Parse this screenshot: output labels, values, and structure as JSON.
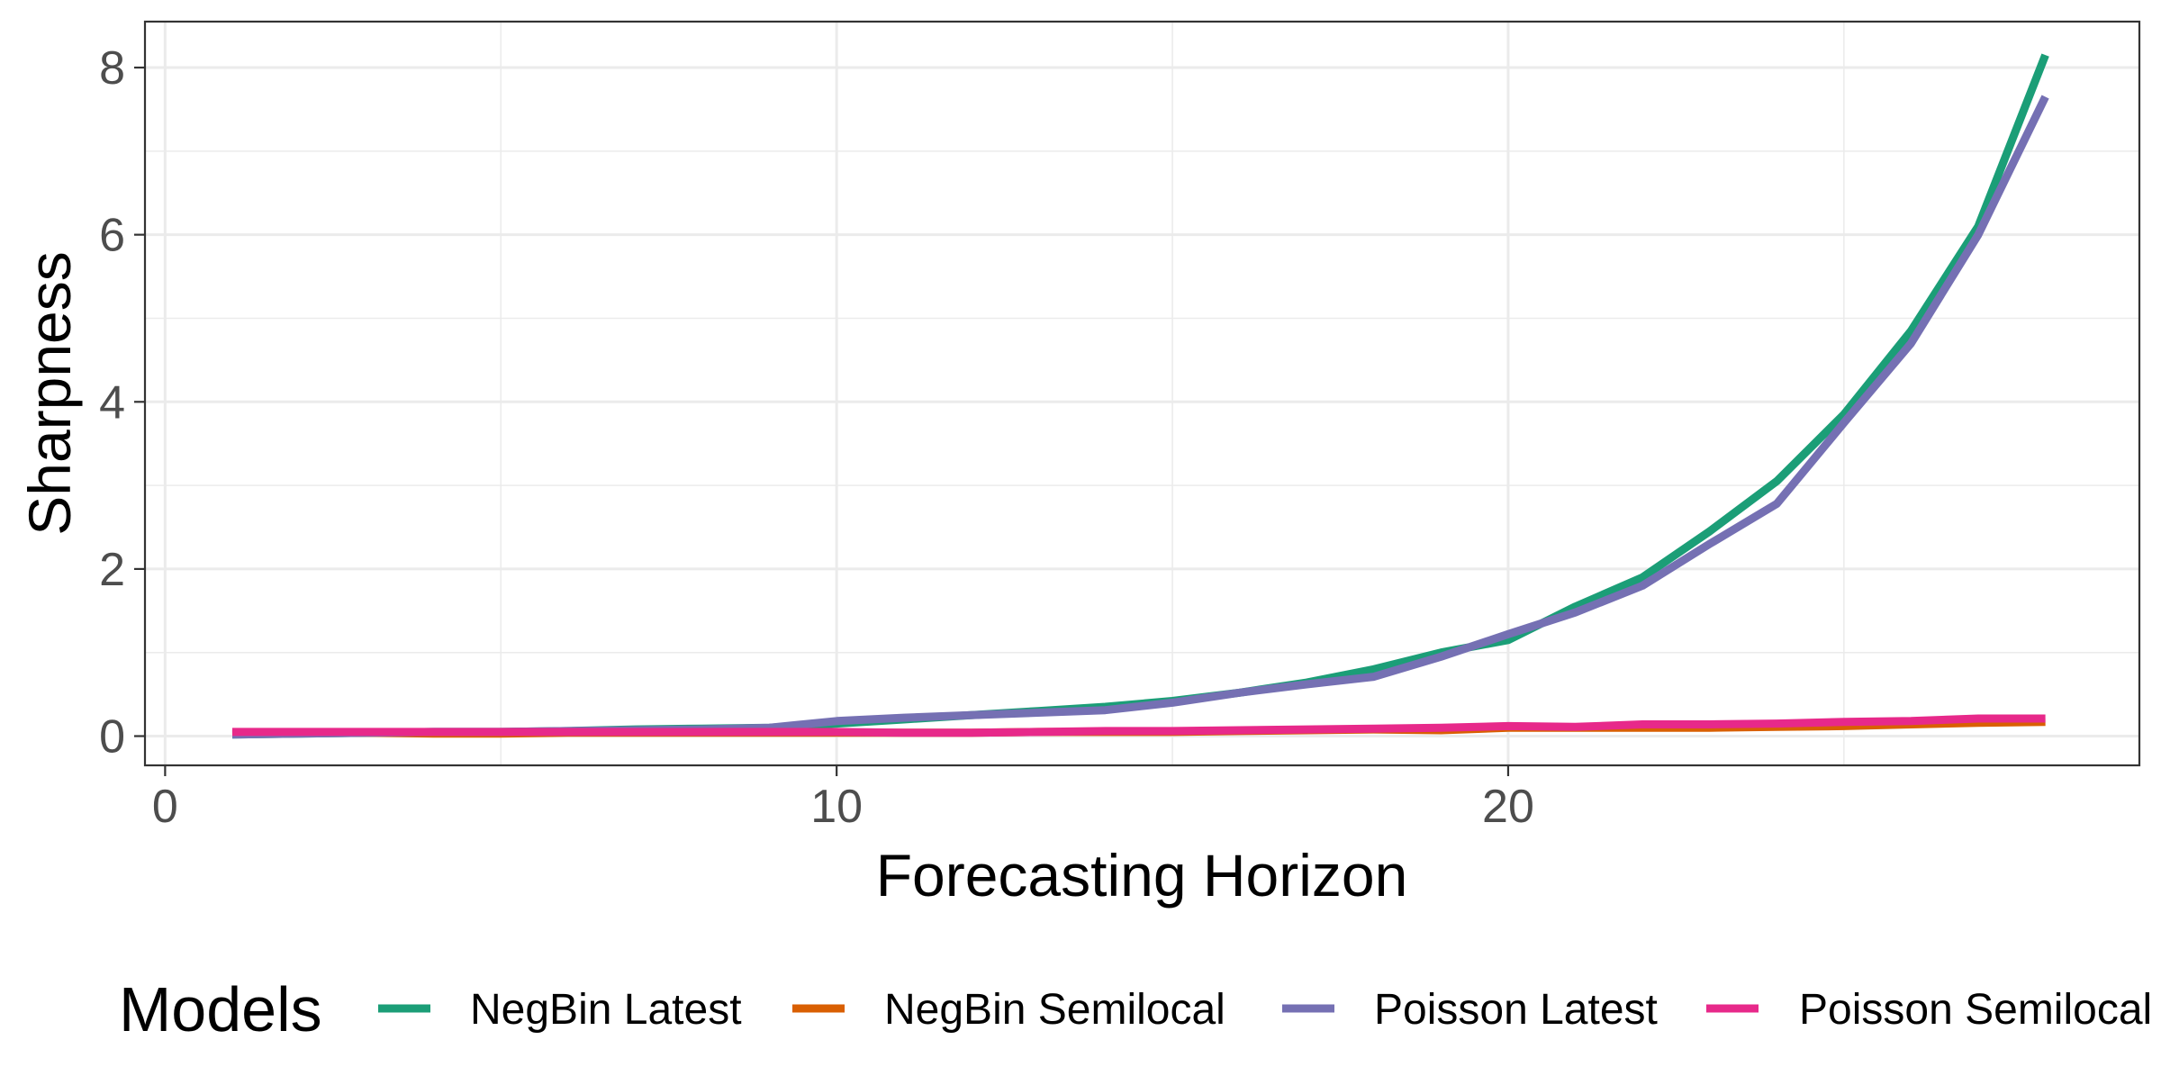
{
  "chart_data": {
    "type": "line",
    "title": "",
    "xlabel": "Forecasting Horizon",
    "ylabel": "Sharpness",
    "xlim": [
      -0.3,
      29.4
    ],
    "ylim": [
      -0.35,
      8.55
    ],
    "x_ticks": [
      0,
      10,
      20
    ],
    "y_ticks": [
      0,
      2,
      4,
      6,
      8
    ],
    "grid": true,
    "legend": {
      "title": "Models",
      "position": "bottom"
    },
    "x": [
      1,
      2,
      3,
      4,
      5,
      6,
      7,
      8,
      9,
      10,
      11,
      12,
      13,
      14,
      15,
      16,
      17,
      18,
      19,
      20,
      21,
      22,
      23,
      24,
      25,
      26,
      27,
      28
    ],
    "series": [
      {
        "name": "NegBin Latest",
        "color": "#1b9e77",
        "values": [
          0.02,
          0.03,
          0.04,
          0.05,
          0.05,
          0.06,
          0.08,
          0.09,
          0.1,
          0.15,
          0.2,
          0.25,
          0.3,
          0.35,
          0.42,
          0.52,
          0.64,
          0.8,
          1.0,
          1.15,
          1.55,
          1.9,
          2.45,
          3.05,
          3.85,
          4.85,
          6.1,
          8.15
        ]
      },
      {
        "name": "NegBin Semilocal",
        "color": "#d95f02",
        "values": [
          0.04,
          0.04,
          0.04,
          0.03,
          0.03,
          0.04,
          0.04,
          0.04,
          0.04,
          0.04,
          0.04,
          0.04,
          0.05,
          0.05,
          0.05,
          0.06,
          0.07,
          0.08,
          0.07,
          0.1,
          0.1,
          0.1,
          0.1,
          0.11,
          0.12,
          0.14,
          0.16,
          0.17
        ]
      },
      {
        "name": "Poisson Latest",
        "color": "#7570b3",
        "values": [
          0.02,
          0.03,
          0.04,
          0.05,
          0.05,
          0.06,
          0.07,
          0.08,
          0.1,
          0.18,
          0.22,
          0.25,
          0.28,
          0.31,
          0.4,
          0.52,
          0.62,
          0.71,
          0.95,
          1.22,
          1.48,
          1.8,
          2.3,
          2.78,
          3.75,
          4.7,
          6.0,
          7.65
        ]
      },
      {
        "name": "Poisson Semilocal",
        "color": "#e7298a",
        "values": [
          0.05,
          0.05,
          0.05,
          0.05,
          0.05,
          0.05,
          0.05,
          0.05,
          0.05,
          0.05,
          0.04,
          0.04,
          0.05,
          0.06,
          0.06,
          0.07,
          0.08,
          0.09,
          0.1,
          0.12,
          0.11,
          0.14,
          0.14,
          0.15,
          0.17,
          0.18,
          0.21,
          0.21
        ]
      }
    ]
  }
}
